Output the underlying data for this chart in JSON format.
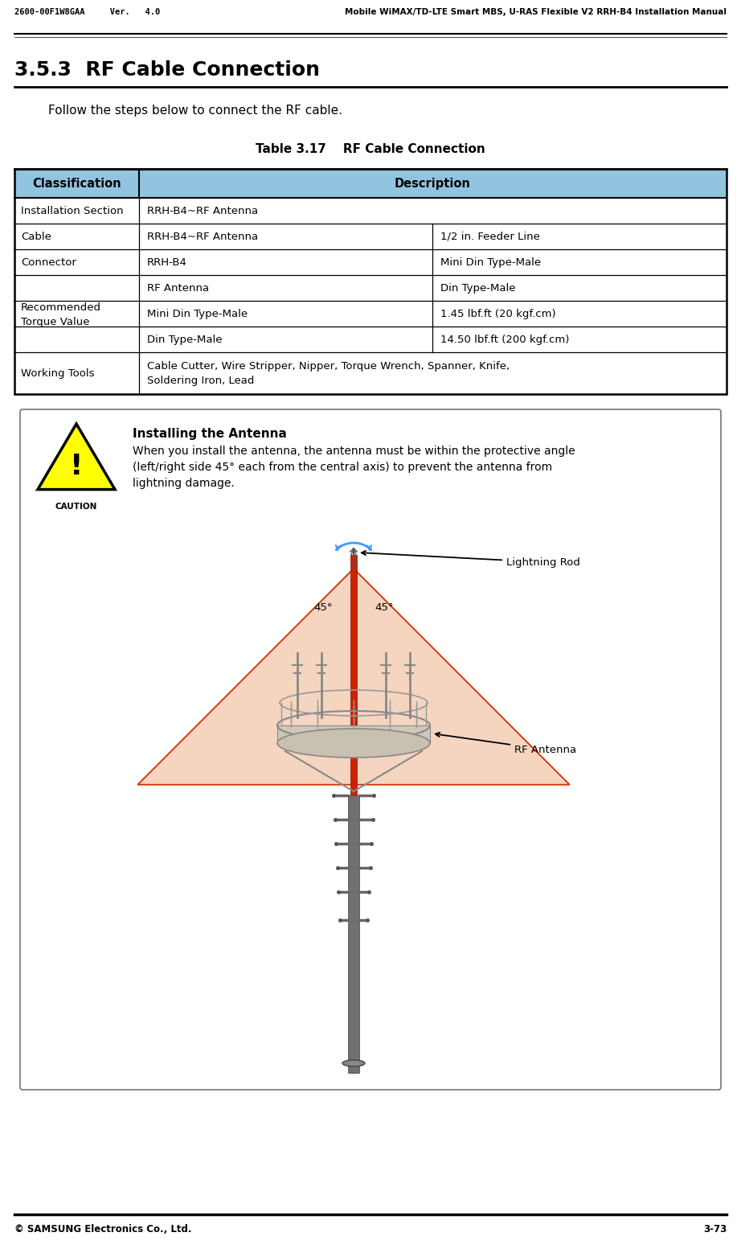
{
  "header_left": "2600-00F1W8GAA     Ver.   4.0",
  "header_right": "Mobile WiMAX/TD-LTE Smart MBS, U-RAS Flexible V2 RRH-B4 Installation Manual",
  "footer_left": "© SAMSUNG Electronics Co., Ltd.",
  "footer_right": "3-73",
  "section_title": "3.5.3  RF Cable Connection",
  "section_intro": "Follow the steps below to connect the RF cable.",
  "table_title": "Table 3.17    RF Cable Connection",
  "table_header_color": "#92C4E0",
  "table_col1_header": "Classification",
  "table_col2_header": "Description",
  "caution_title": "Installing the Antenna",
  "caution_text": "When you install the antenna, the antenna must be within the protective angle\n(left/right side 45° each from the central axis) to prevent the antenna from\nlightning damage.",
  "caution_icon_color": "#FFFF00",
  "lightning_rod_label": "Lightning Rod",
  "rf_antenna_label": "RF Antenna",
  "angle_label_left": "45°",
  "angle_label_right": "45°",
  "fan_fill_color": "#F5D5C0",
  "fan_edge_color": "#CC3300",
  "pole_color": "#CC2200",
  "arc_color": "#4499FF"
}
